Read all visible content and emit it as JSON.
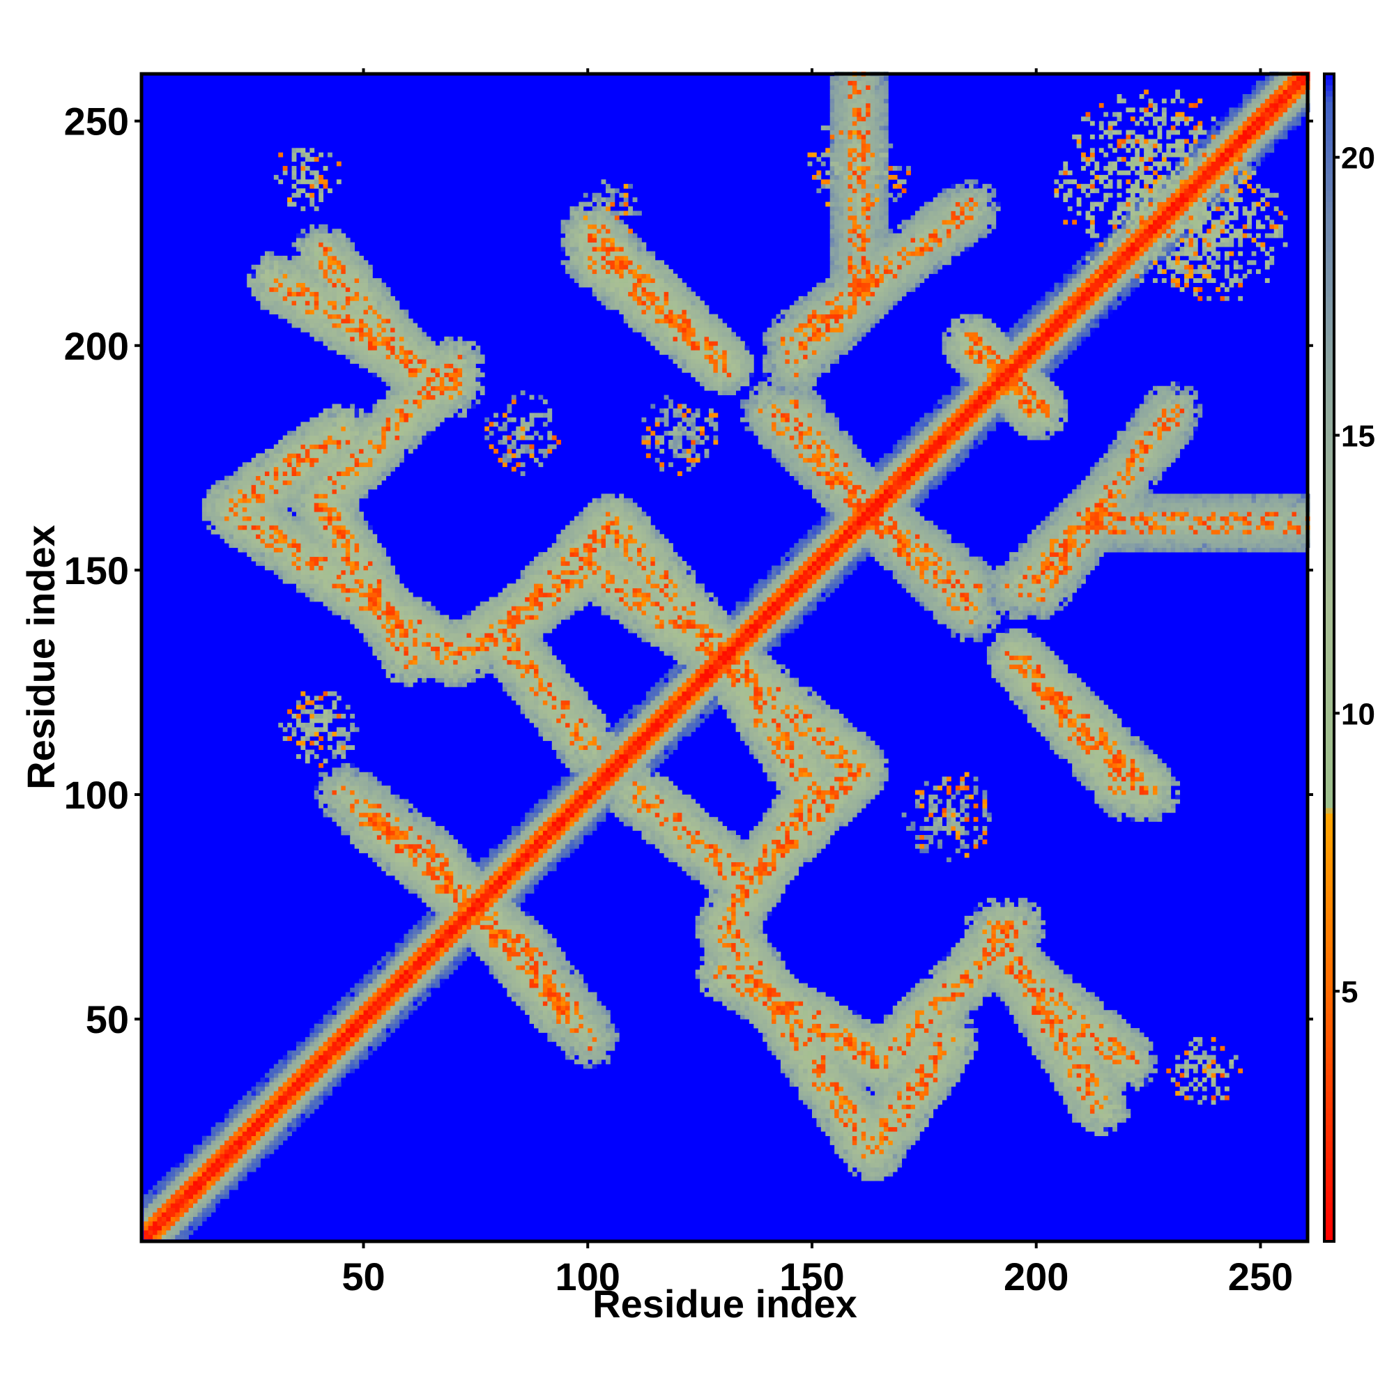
{
  "chart_data": {
    "type": "heatmap",
    "title": "",
    "xlabel": "Residue index",
    "ylabel": "Residue index",
    "xlim": [
      1,
      260
    ],
    "ylim": [
      1,
      260
    ],
    "x_ticks": [
      50,
      100,
      150,
      200,
      250
    ],
    "y_ticks": [
      50,
      100,
      150,
      200,
      250
    ],
    "colorbar": {
      "range": [
        0.5,
        21.5
      ],
      "ticks": [
        5,
        10,
        15,
        20
      ],
      "stops": [
        {
          "value": 0.5,
          "color": "#ff0000"
        },
        {
          "value": 5.0,
          "color": "#ff6a00"
        },
        {
          "value": 8.2,
          "color": "#ffa500"
        },
        {
          "value": 8.3,
          "color": "#9dbf8c"
        },
        {
          "value": 12.0,
          "color": "#a9bf95"
        },
        {
          "value": 16.0,
          "color": "#8fa8a0"
        },
        {
          "value": 19.0,
          "color": "#6d86b0"
        },
        {
          "value": 21.0,
          "color": "#4060c8"
        },
        {
          "value": 21.5,
          "color": "#0000ff"
        }
      ]
    },
    "background_value": 21.5,
    "background_color": "#0000ff",
    "value_meaning": "distance-like contact value; low = red/orange, high = blue",
    "features": [
      {
        "kind": "diagonal",
        "from": [
          1,
          1
        ],
        "to": [
          260,
          260
        ],
        "value": 2
      },
      {
        "kind": "band",
        "from": [
          30,
          214
        ],
        "to": [
          70,
          190
        ],
        "value": 12
      },
      {
        "kind": "band",
        "from": [
          45,
          180
        ],
        "to": [
          20,
          163
        ],
        "value": 12
      },
      {
        "kind": "band",
        "from": [
          20,
          163
        ],
        "to": [
          70,
          130
        ],
        "value": 12
      },
      {
        "kind": "band",
        "from": [
          70,
          130
        ],
        "to": [
          100,
          150
        ],
        "value": 12
      },
      {
        "kind": "band",
        "from": [
          100,
          150
        ],
        "to": [
          130,
          130
        ],
        "value": 12
      },
      {
        "kind": "band",
        "from": [
          130,
          130
        ],
        "to": [
          160,
          105
        ],
        "value": 12
      },
      {
        "kind": "band",
        "from": [
          160,
          105
        ],
        "to": [
          135,
          80
        ],
        "value": 12
      },
      {
        "kind": "band",
        "from": [
          135,
          80
        ],
        "to": [
          110,
          100
        ],
        "value": 12
      },
      {
        "kind": "band",
        "from": [
          50,
          95
        ],
        "to": [
          85,
          65
        ],
        "value": 12
      },
      {
        "kind": "band",
        "from": [
          85,
          65
        ],
        "to": [
          100,
          45
        ],
        "value": 13
      },
      {
        "kind": "band",
        "from": [
          130,
          60
        ],
        "to": [
          165,
          40
        ],
        "value": 12
      },
      {
        "kind": "band",
        "from": [
          165,
          40
        ],
        "to": [
          195,
          70
        ],
        "value": 12
      },
      {
        "kind": "band",
        "from": [
          195,
          60
        ],
        "to": [
          220,
          40
        ],
        "value": 12
      },
      {
        "kind": "band",
        "from": [
          100,
          220
        ],
        "to": [
          130,
          195
        ],
        "value": 12
      },
      {
        "kind": "band",
        "from": [
          140,
          185
        ],
        "to": [
          165,
          160
        ],
        "value": 13
      },
      {
        "kind": "band",
        "from": [
          165,
          160
        ],
        "to": [
          185,
          145
        ],
        "value": 13
      },
      {
        "kind": "band",
        "from": [
          195,
          130
        ],
        "to": [
          225,
          100
        ],
        "value": 12
      },
      {
        "kind": "band",
        "from": [
          195,
          145
        ],
        "to": [
          215,
          165
        ],
        "value": 13
      },
      {
        "kind": "band",
        "from": [
          210,
          160
        ],
        "to": [
          258,
          160
        ],
        "value": 14
      },
      {
        "kind": "band",
        "from": [
          145,
          200
        ],
        "to": [
          185,
          230
        ],
        "value": 13
      },
      {
        "kind": "band",
        "from": [
          185,
          200
        ],
        "to": [
          200,
          185
        ],
        "value": 12
      },
      {
        "kind": "blob",
        "at": [
          37,
          237
        ],
        "r": 8,
        "value": 12
      },
      {
        "kind": "blob",
        "at": [
          237,
          38
        ],
        "r": 8,
        "value": 12
      },
      {
        "kind": "blob",
        "at": [
          160,
          240
        ],
        "r": 12,
        "value": 14
      },
      {
        "kind": "blob",
        "at": [
          105,
          230
        ],
        "r": 7,
        "value": 15
      },
      {
        "kind": "blob",
        "at": [
          40,
          115
        ],
        "r": 9,
        "value": 13
      },
      {
        "kind": "blob",
        "at": [
          225,
          235
        ],
        "r": 22,
        "value": 11
      },
      {
        "kind": "blob",
        "at": [
          240,
          225
        ],
        "r": 16,
        "value": 12
      },
      {
        "kind": "blob",
        "at": [
          85,
          180
        ],
        "r": 9,
        "value": 15
      },
      {
        "kind": "blob",
        "at": [
          120,
          180
        ],
        "r": 9,
        "value": 15
      },
      {
        "kind": "blob",
        "at": [
          180,
          95
        ],
        "r": 10,
        "value": 15
      }
    ]
  }
}
